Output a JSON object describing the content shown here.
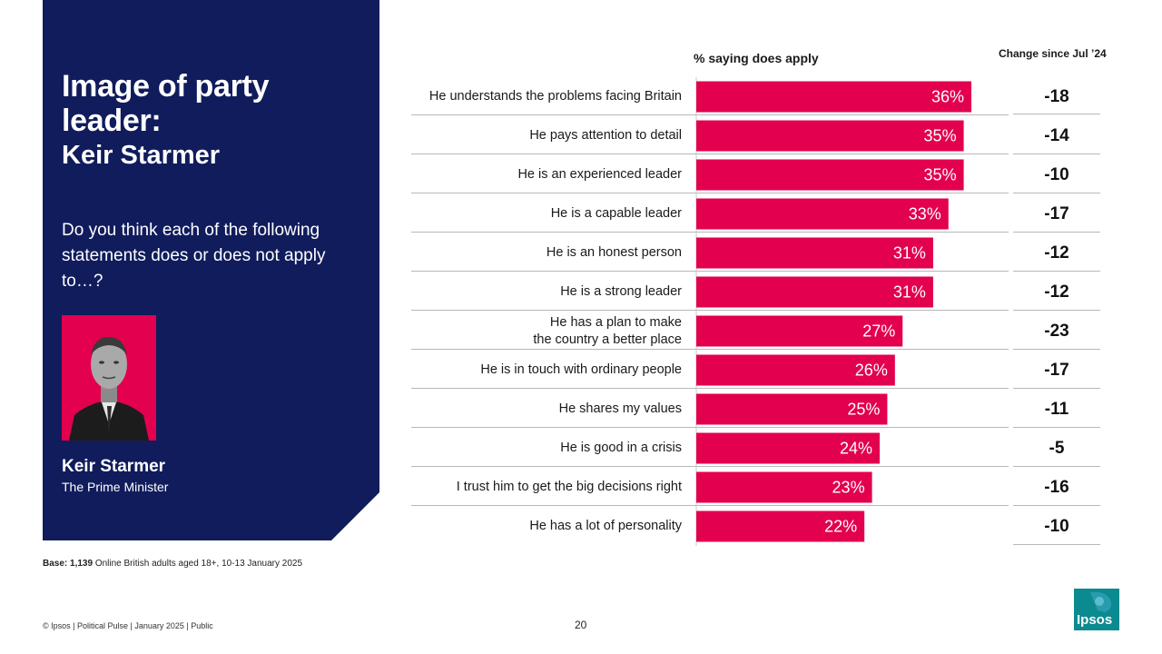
{
  "panel": {
    "title": "Image of party leader:",
    "subtitle": "Keir Starmer",
    "question": "Do you think each of the following statements does or does not apply to…?",
    "person_name": "Keir Starmer",
    "person_role": "The Prime Minister"
  },
  "headers": {
    "chart": "% saying does apply",
    "change": "Change since Jul ’24"
  },
  "colors": {
    "panel": "#101c5c",
    "bar": "#e2004f",
    "logo": "#0b8a8f"
  },
  "chart_data": {
    "type": "bar",
    "orientation": "horizontal",
    "title": "% saying does apply",
    "unit": "%",
    "xlim": [
      0,
      40
    ],
    "categories": [
      "He understands the problems facing Britain",
      "He pays attention to detail",
      "He is an experienced leader",
      "He is a capable leader",
      "He is an honest person",
      "He is a strong leader",
      "He has a plan to make the country a better place",
      "He is in touch with ordinary people",
      "He shares my values",
      "He is good in a crisis",
      "I trust him to get the big decisions right",
      "He has a lot of personality"
    ],
    "values": [
      36,
      35,
      35,
      33,
      31,
      31,
      27,
      26,
      25,
      24,
      23,
      22
    ],
    "labels": [
      "36%",
      "35%",
      "35%",
      "33%",
      "31%",
      "31%",
      "27%",
      "26%",
      "25%",
      "24%",
      "23%",
      "22%"
    ],
    "change_since_jul24": [
      "-18",
      "-14",
      "-10",
      "-17",
      "-12",
      "-12",
      "-23",
      "-17",
      "-11",
      "-5",
      "-16",
      "-10"
    ]
  },
  "rows": [
    {
      "label": "He understands the problems facing Britain",
      "change": "-18"
    },
    {
      "label": "He pays attention to detail",
      "change": "-14"
    },
    {
      "label": "He is an experienced leader",
      "change": "-10"
    },
    {
      "label": "He is a capable leader",
      "change": "-17"
    },
    {
      "label": "He is an honest person",
      "change": "-12"
    },
    {
      "label": "He is a strong leader",
      "change": "-12"
    },
    {
      "label_line1": "He has a plan to make",
      "label_line2": "the country a better place",
      "change": "-23"
    },
    {
      "label": "He is in touch with ordinary people",
      "change": "-17"
    },
    {
      "label": "He shares my values",
      "change": "-11"
    },
    {
      "label": "He is good in a crisis",
      "change": "-5"
    },
    {
      "label": "I trust him to get the big decisions right",
      "change": "-16"
    },
    {
      "label": "He has a lot of personality",
      "change": "-10"
    }
  ],
  "base": {
    "bold": "Base: 1,139",
    "rest": " Online British adults aged 18+,  10-13 January 2025"
  },
  "footer": "© Ipsos | Political Pulse | January 2025 | Public",
  "page_number": "20",
  "logo_text": "Ipsos"
}
